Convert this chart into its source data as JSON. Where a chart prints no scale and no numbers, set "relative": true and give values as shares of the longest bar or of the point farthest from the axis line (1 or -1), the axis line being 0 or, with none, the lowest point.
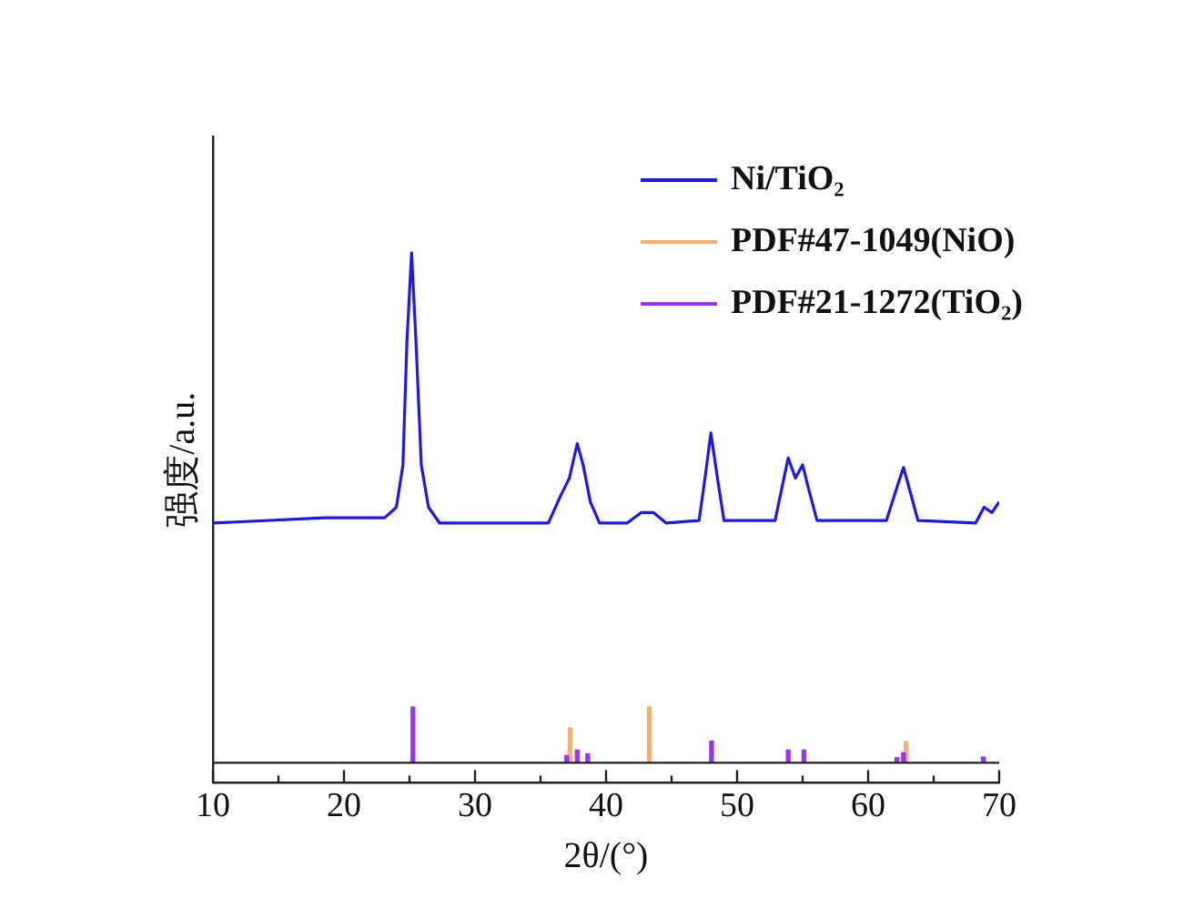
{
  "chart_data": {
    "type": "line",
    "relative": true,
    "xlabel": "2θ/(°)",
    "ylabel": "强度/a.u.",
    "xlim": [
      10,
      70
    ],
    "xticks": [
      10,
      {
        "value": 15,
        "label": null
      },
      20,
      {
        "value": 25,
        "label": null
      },
      30,
      {
        "value": 35,
        "label": null
      },
      40,
      {
        "value": 45,
        "label": null
      },
      50,
      {
        "value": 55,
        "label": null
      },
      60,
      {
        "value": 65,
        "label": null
      },
      70
    ],
    "grid": false,
    "legend": "top right",
    "marker": "none",
    "line_style": "solid",
    "series": [
      {
        "name": "Ni/TiO₂",
        "color": "#1a1aee",
        "x": [
          10.0,
          18.5,
          23.1,
          24.0,
          24.5,
          24.8,
          25.16,
          25.5,
          25.9,
          26.45,
          27.3,
          35.6,
          36.5,
          37.2,
          37.8,
          38.25,
          38.8,
          39.5,
          41.6,
          42.7,
          43.6,
          44.6,
          47.1,
          47.55,
          48.0,
          48.5,
          49.0,
          52.9,
          53.45,
          53.9,
          54.45,
          55.0,
          55.4,
          56.1,
          61.4,
          62.1,
          62.7,
          63.2,
          63.8,
          68.2,
          68.85,
          69.45,
          70.0
        ],
        "values": [
          0.49,
          0.5,
          0.5,
          0.52,
          0.6,
          0.83,
          1.0,
          0.83,
          0.6,
          0.52,
          0.49,
          0.49,
          0.54,
          0.575,
          0.64,
          0.6,
          0.53,
          0.49,
          0.49,
          0.51,
          0.51,
          0.49,
          0.495,
          0.575,
          0.66,
          0.575,
          0.495,
          0.495,
          0.56,
          0.613,
          0.575,
          0.6,
          0.56,
          0.495,
          0.495,
          0.55,
          0.595,
          0.55,
          0.495,
          0.49,
          0.52,
          0.51,
          0.53
        ]
      },
      {
        "name": "PDF#47-1049(NiO)",
        "type": "bar",
        "axis": "y2",
        "color": "#f5b070",
        "x": [
          37.25,
          43.3,
          62.9
        ],
        "values": [
          0.63,
          1.0,
          0.38
        ]
      },
      {
        "name": "PDF#21-1272(TiO₂)",
        "type": "bar",
        "axis": "y2",
        "color": "#9b30ff",
        "x": [
          25.26,
          37.0,
          37.8,
          38.6,
          48.05,
          53.9,
          55.1,
          62.2,
          62.7,
          68.8
        ],
        "values": [
          1.0,
          0.13,
          0.23,
          0.16,
          0.39,
          0.23,
          0.23,
          0.09,
          0.18,
          0.1
        ]
      }
    ]
  }
}
